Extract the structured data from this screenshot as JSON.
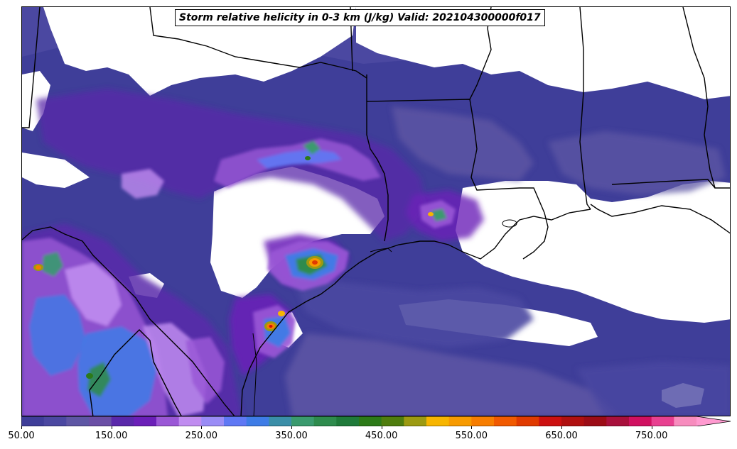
{
  "title": "Storm relative helicity in 0-3 km (J/kg) Valid: 202104300000f017",
  "colorbar": {
    "min": 50,
    "max": 800,
    "step": 25,
    "extend": "max",
    "ticks": [
      "50.00",
      "150.00",
      "250.00",
      "350.00",
      "450.00",
      "550.00",
      "650.00",
      "750.00"
    ],
    "tick_values": [
      50,
      150,
      250,
      350,
      450,
      550,
      650,
      750
    ],
    "colors": [
      "#3f3e99",
      "#4b48a1",
      "#5e56a4",
      "#6a4ea5",
      "#5a28aa",
      "#6b1fb8",
      "#9a57d6",
      "#c08cf0",
      "#9a8cf6",
      "#5f78f4",
      "#3e7ce6",
      "#3a8ea8",
      "#3a9a6e",
      "#2e8b4d",
      "#1f7a3a",
      "#2c7a18",
      "#4f7d0e",
      "#9c9a12",
      "#f7b500",
      "#f79a00",
      "#f77d00",
      "#f15a00",
      "#e03a00",
      "#cc1010",
      "#b01010",
      "#9c0c16",
      "#a8103c",
      "#d01060",
      "#e84090",
      "#f78cbe"
    ],
    "extend_color": "#ff9ad0"
  }
}
